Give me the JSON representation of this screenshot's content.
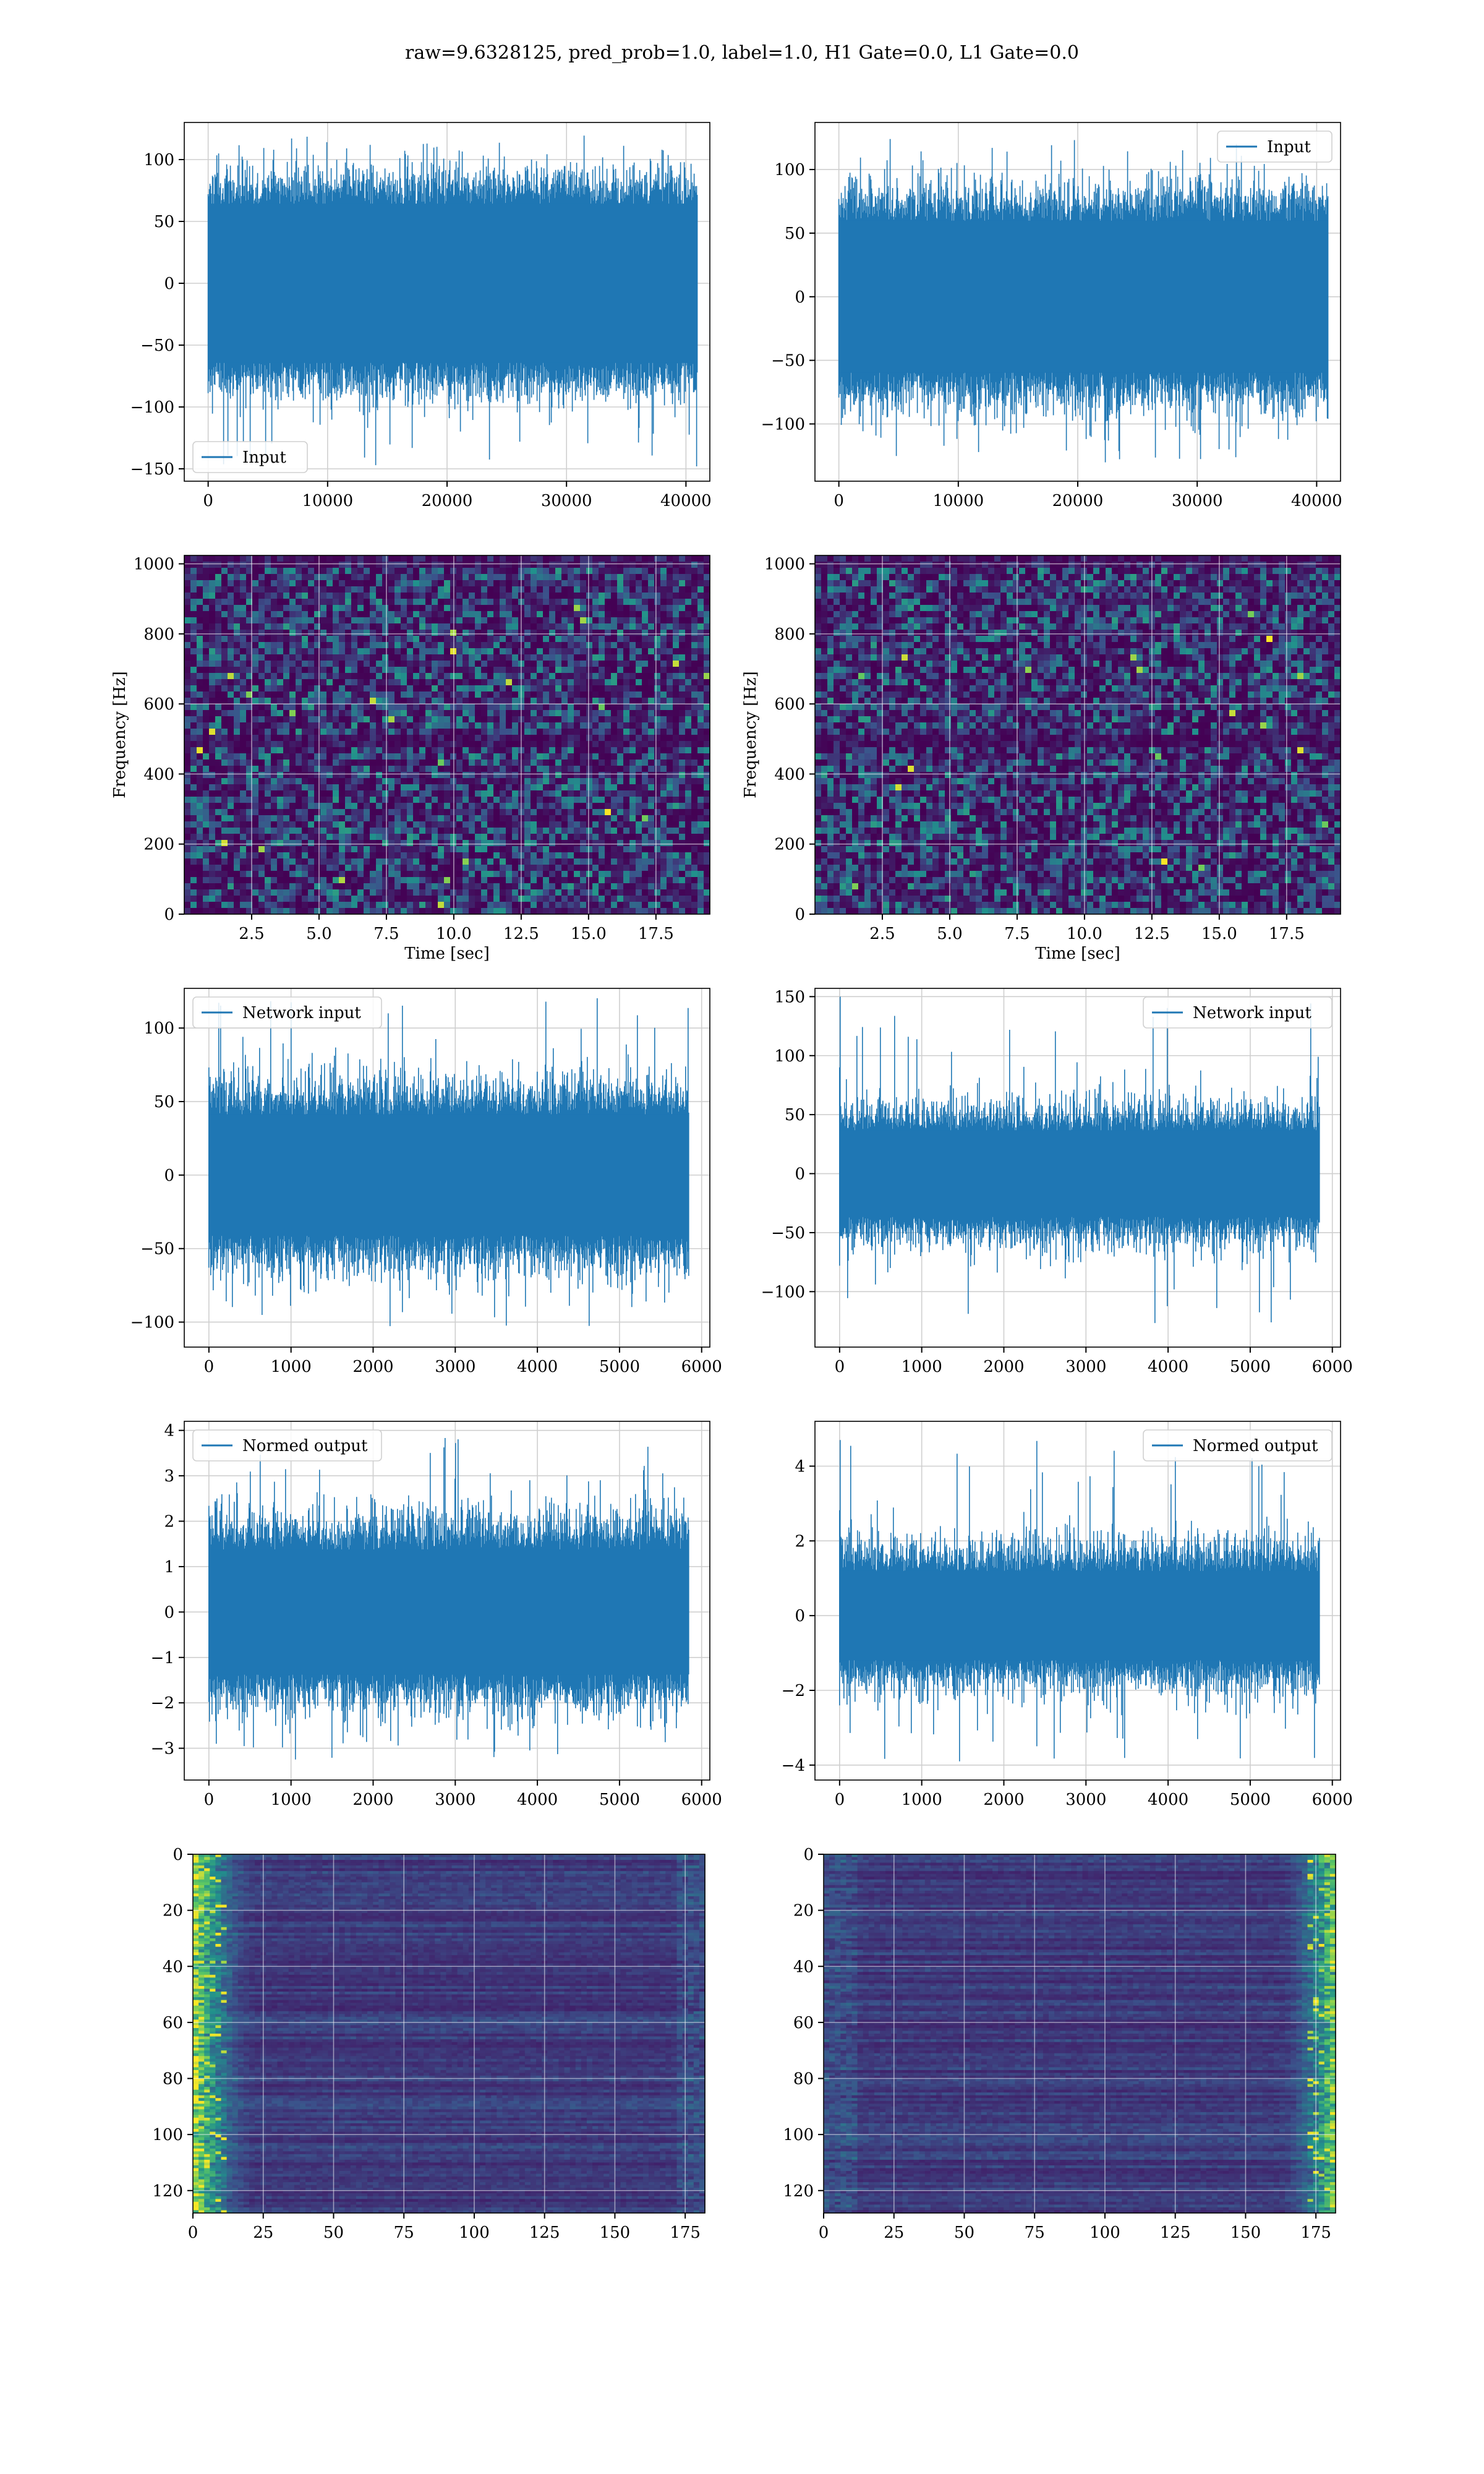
{
  "figure": {
    "suptitle": "raw=9.6328125, pred_prob=1.0, label=1.0, H1 Gate=0.0, L1 Gate=0.0"
  },
  "colors": {
    "line": "#1f77b4",
    "grid": "#cfcfcf",
    "viridis_dark": "#440154",
    "viridis_mid": "#31688e",
    "viridis_teal": "#21918c",
    "viridis_green": "#5ec962",
    "viridis_yellow": "#fde725"
  },
  "chart_data": [
    {
      "id": "raw-h1",
      "type": "line",
      "legend": "Input",
      "legend_loc": "lower left",
      "xlim": [
        -2000,
        42000
      ],
      "ylim": [
        -160,
        130
      ],
      "xticks": [
        0,
        10000,
        20000,
        30000,
        40000
      ],
      "yticks": [
        -150,
        -100,
        -50,
        0,
        50,
        100
      ],
      "n_samples": 40960,
      "band": {
        "core": 70,
        "spike": 110,
        "max": 120,
        "min": -148
      },
      "grid": true
    },
    {
      "id": "raw-l1",
      "type": "line",
      "legend": "Input",
      "legend_loc": "upper right",
      "xlim": [
        -2000,
        42000
      ],
      "ylim": [
        -145,
        137
      ],
      "xticks": [
        0,
        10000,
        20000,
        30000,
        40000
      ],
      "yticks": [
        -100,
        -50,
        0,
        50,
        100
      ],
      "n_samples": 40960,
      "band": {
        "core": 65,
        "spike": 110,
        "max": 128,
        "min": -132
      },
      "grid": true
    },
    {
      "id": "spec-h1",
      "type": "heatmap",
      "xlabel": "Time [sec]",
      "ylabel": "Frequency [Hz]",
      "xlim": [
        0,
        19.5
      ],
      "ylim": [
        0,
        1024
      ],
      "xticks": [
        2.5,
        5.0,
        7.5,
        10.0,
        12.5,
        15.0,
        17.5
      ],
      "yticks": [
        0,
        200,
        400,
        600,
        800,
        1000
      ],
      "colormap": "viridis",
      "grid": true
    },
    {
      "id": "spec-l1",
      "type": "heatmap",
      "xlabel": "Time [sec]",
      "ylabel": "Frequency [Hz]",
      "xlim": [
        0,
        19.5
      ],
      "ylim": [
        0,
        1024
      ],
      "xticks": [
        2.5,
        5.0,
        7.5,
        10.0,
        12.5,
        15.0,
        17.5
      ],
      "yticks": [
        0,
        200,
        400,
        600,
        800,
        1000
      ],
      "colormap": "viridis",
      "grid": true
    },
    {
      "id": "net-h1",
      "type": "line",
      "legend": "Network input",
      "legend_loc": "upper left",
      "xlim": [
        -300,
        6100
      ],
      "ylim": [
        -117,
        127
      ],
      "xticks": [
        0,
        1000,
        2000,
        3000,
        4000,
        5000,
        6000
      ],
      "yticks": [
        -100,
        -50,
        0,
        50,
        100
      ],
      "n_samples": 5840,
      "band": {
        "core": 45,
        "spike": 85,
        "max": 122,
        "min": -105
      },
      "grid": true
    },
    {
      "id": "net-l1",
      "type": "line",
      "legend": "Network input",
      "legend_loc": "upper right",
      "xlim": [
        -300,
        6100
      ],
      "ylim": [
        -147,
        157
      ],
      "xticks": [
        0,
        1000,
        2000,
        3000,
        4000,
        5000,
        6000
      ],
      "yticks": [
        -100,
        -50,
        0,
        50,
        100,
        150
      ],
      "n_samples": 5840,
      "band": {
        "core": 40,
        "spike": 80,
        "max": 150,
        "min": -130
      },
      "grid": true
    },
    {
      "id": "norm-h1",
      "type": "line",
      "legend": "Normed output",
      "legend_loc": "upper left",
      "xlim": [
        -300,
        6100
      ],
      "ylim": [
        -3.7,
        4.2
      ],
      "xticks": [
        0,
        1000,
        2000,
        3000,
        4000,
        5000,
        6000
      ],
      "yticks": [
        -3,
        -2,
        -1,
        0,
        1,
        2,
        3,
        4
      ],
      "n_samples": 5840,
      "band": {
        "core": 1.5,
        "spike": 2.8,
        "max": 3.9,
        "min": -3.3
      },
      "grid": true
    },
    {
      "id": "norm-l1",
      "type": "line",
      "legend": "Normed output",
      "legend_loc": "upper right",
      "xlim": [
        -300,
        6100
      ],
      "ylim": [
        -4.4,
        5.2
      ],
      "xticks": [
        0,
        1000,
        2000,
        3000,
        4000,
        5000,
        6000
      ],
      "yticks": [
        -4,
        -2,
        0,
        2,
        4
      ],
      "n_samples": 5840,
      "band": {
        "core": 1.3,
        "spike": 2.7,
        "max": 4.7,
        "min": -4.0
      },
      "grid": true
    },
    {
      "id": "feat-h1",
      "type": "heatmap",
      "xlim": [
        0,
        182
      ],
      "ylim": [
        128,
        0
      ],
      "xticks": [
        0,
        25,
        50,
        75,
        100,
        125,
        150,
        175
      ],
      "yticks": [
        0,
        20,
        40,
        60,
        80,
        100,
        120
      ],
      "colormap": "viridis",
      "bright_edge": "left",
      "grid": true
    },
    {
      "id": "feat-l1",
      "type": "heatmap",
      "xlim": [
        0,
        182
      ],
      "ylim": [
        128,
        0
      ],
      "xticks": [
        0,
        25,
        50,
        75,
        100,
        125,
        150,
        175
      ],
      "yticks": [
        0,
        20,
        40,
        60,
        80,
        100,
        120
      ],
      "colormap": "viridis",
      "bright_edge": "right",
      "grid": true
    }
  ]
}
